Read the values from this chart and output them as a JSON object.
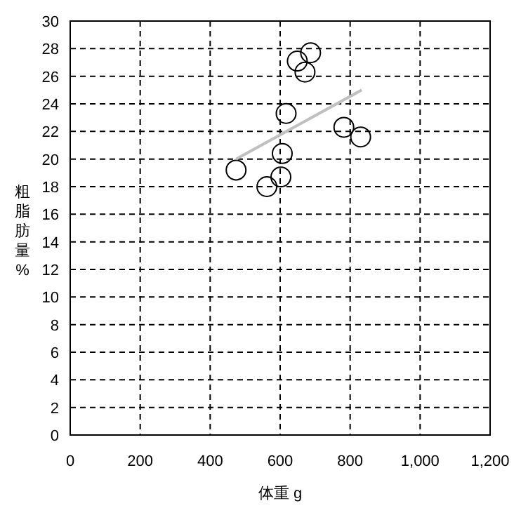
{
  "chart_data": {
    "type": "scatter",
    "xlabel": "体重 g",
    "ylabel": "粗脂肪量%",
    "xlim": [
      0,
      1200
    ],
    "xticks": [
      0,
      200,
      400,
      600,
      800,
      {
        "value": 1000,
        "label": "1,000"
      },
      {
        "value": 1200,
        "label": "1,200"
      }
    ],
    "ylim": [
      0,
      30
    ],
    "yticks": [
      0,
      2,
      4,
      6,
      8,
      10,
      12,
      14,
      16,
      18,
      20,
      22,
      24,
      26,
      28,
      30
    ],
    "grid": true,
    "series": [
      {
        "color": "#000000",
        "marker": "circle",
        "x": [
          687,
          649,
          671,
          617,
          782,
          830,
          606,
          474,
          602,
          562
        ],
        "values": [
          27.7,
          27.1,
          26.3,
          23.3,
          22.3,
          21.6,
          20.4,
          19.2,
          18.7,
          18.0
        ]
      },
      {
        "type": "line",
        "color": "#c0c0c0",
        "x": [
          474,
          833
        ],
        "values": [
          20.0,
          25.0
        ]
      }
    ]
  }
}
